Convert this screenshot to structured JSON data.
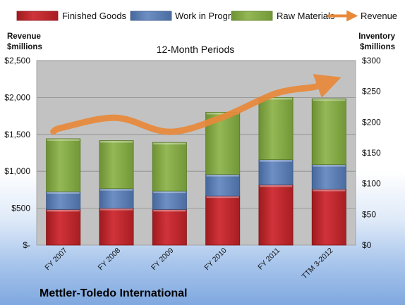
{
  "chart_data": {
    "type": "bar",
    "subtitle": "12-Month Periods",
    "company": "Mettler-Toledo International",
    "categories": [
      "FY 2007",
      "FY 2008",
      "FY 2009",
      "FY 2010",
      "FY 2011",
      "TTM 3-2012"
    ],
    "left_axis": {
      "title_line1": "Revenue",
      "title_line2": "$millions",
      "ylim": [
        0,
        2500
      ],
      "ticks": [
        0,
        500,
        1000,
        1500,
        2000,
        2500
      ],
      "tick_labels": [
        "$-",
        "$500",
        "$1,000",
        "$1,500",
        "$2,000",
        "$2,500"
      ]
    },
    "right_axis": {
      "title_line1": "Inventory",
      "title_line2": "$millions",
      "ylim": [
        0,
        300
      ],
      "ticks": [
        0,
        50,
        100,
        150,
        200,
        250,
        300
      ],
      "tick_labels": [
        "$0",
        "$50",
        "$100",
        "$150",
        "$200",
        "$250",
        "$300"
      ]
    },
    "stacked_series": [
      {
        "name": "Finished Goods",
        "color": "#c0252a",
        "values": [
          58,
          60,
          58,
          80,
          98,
          91
        ]
      },
      {
        "name": "Work in Progress",
        "color": "#5b7cb0",
        "values": [
          29,
          32,
          30,
          35,
          41,
          40
        ]
      },
      {
        "name": "Raw Materials",
        "color": "#84a844",
        "values": [
          86,
          78,
          79,
          101,
          101,
          107
        ]
      }
    ],
    "line_series": {
      "name": "Revenue",
      "color": "#e8893a",
      "values": [
        1595,
        1725,
        1535,
        1735,
        2055,
        2240
      ]
    },
    "plot_background": "#c0c0c0",
    "grid": true,
    "legend_position": "top"
  }
}
